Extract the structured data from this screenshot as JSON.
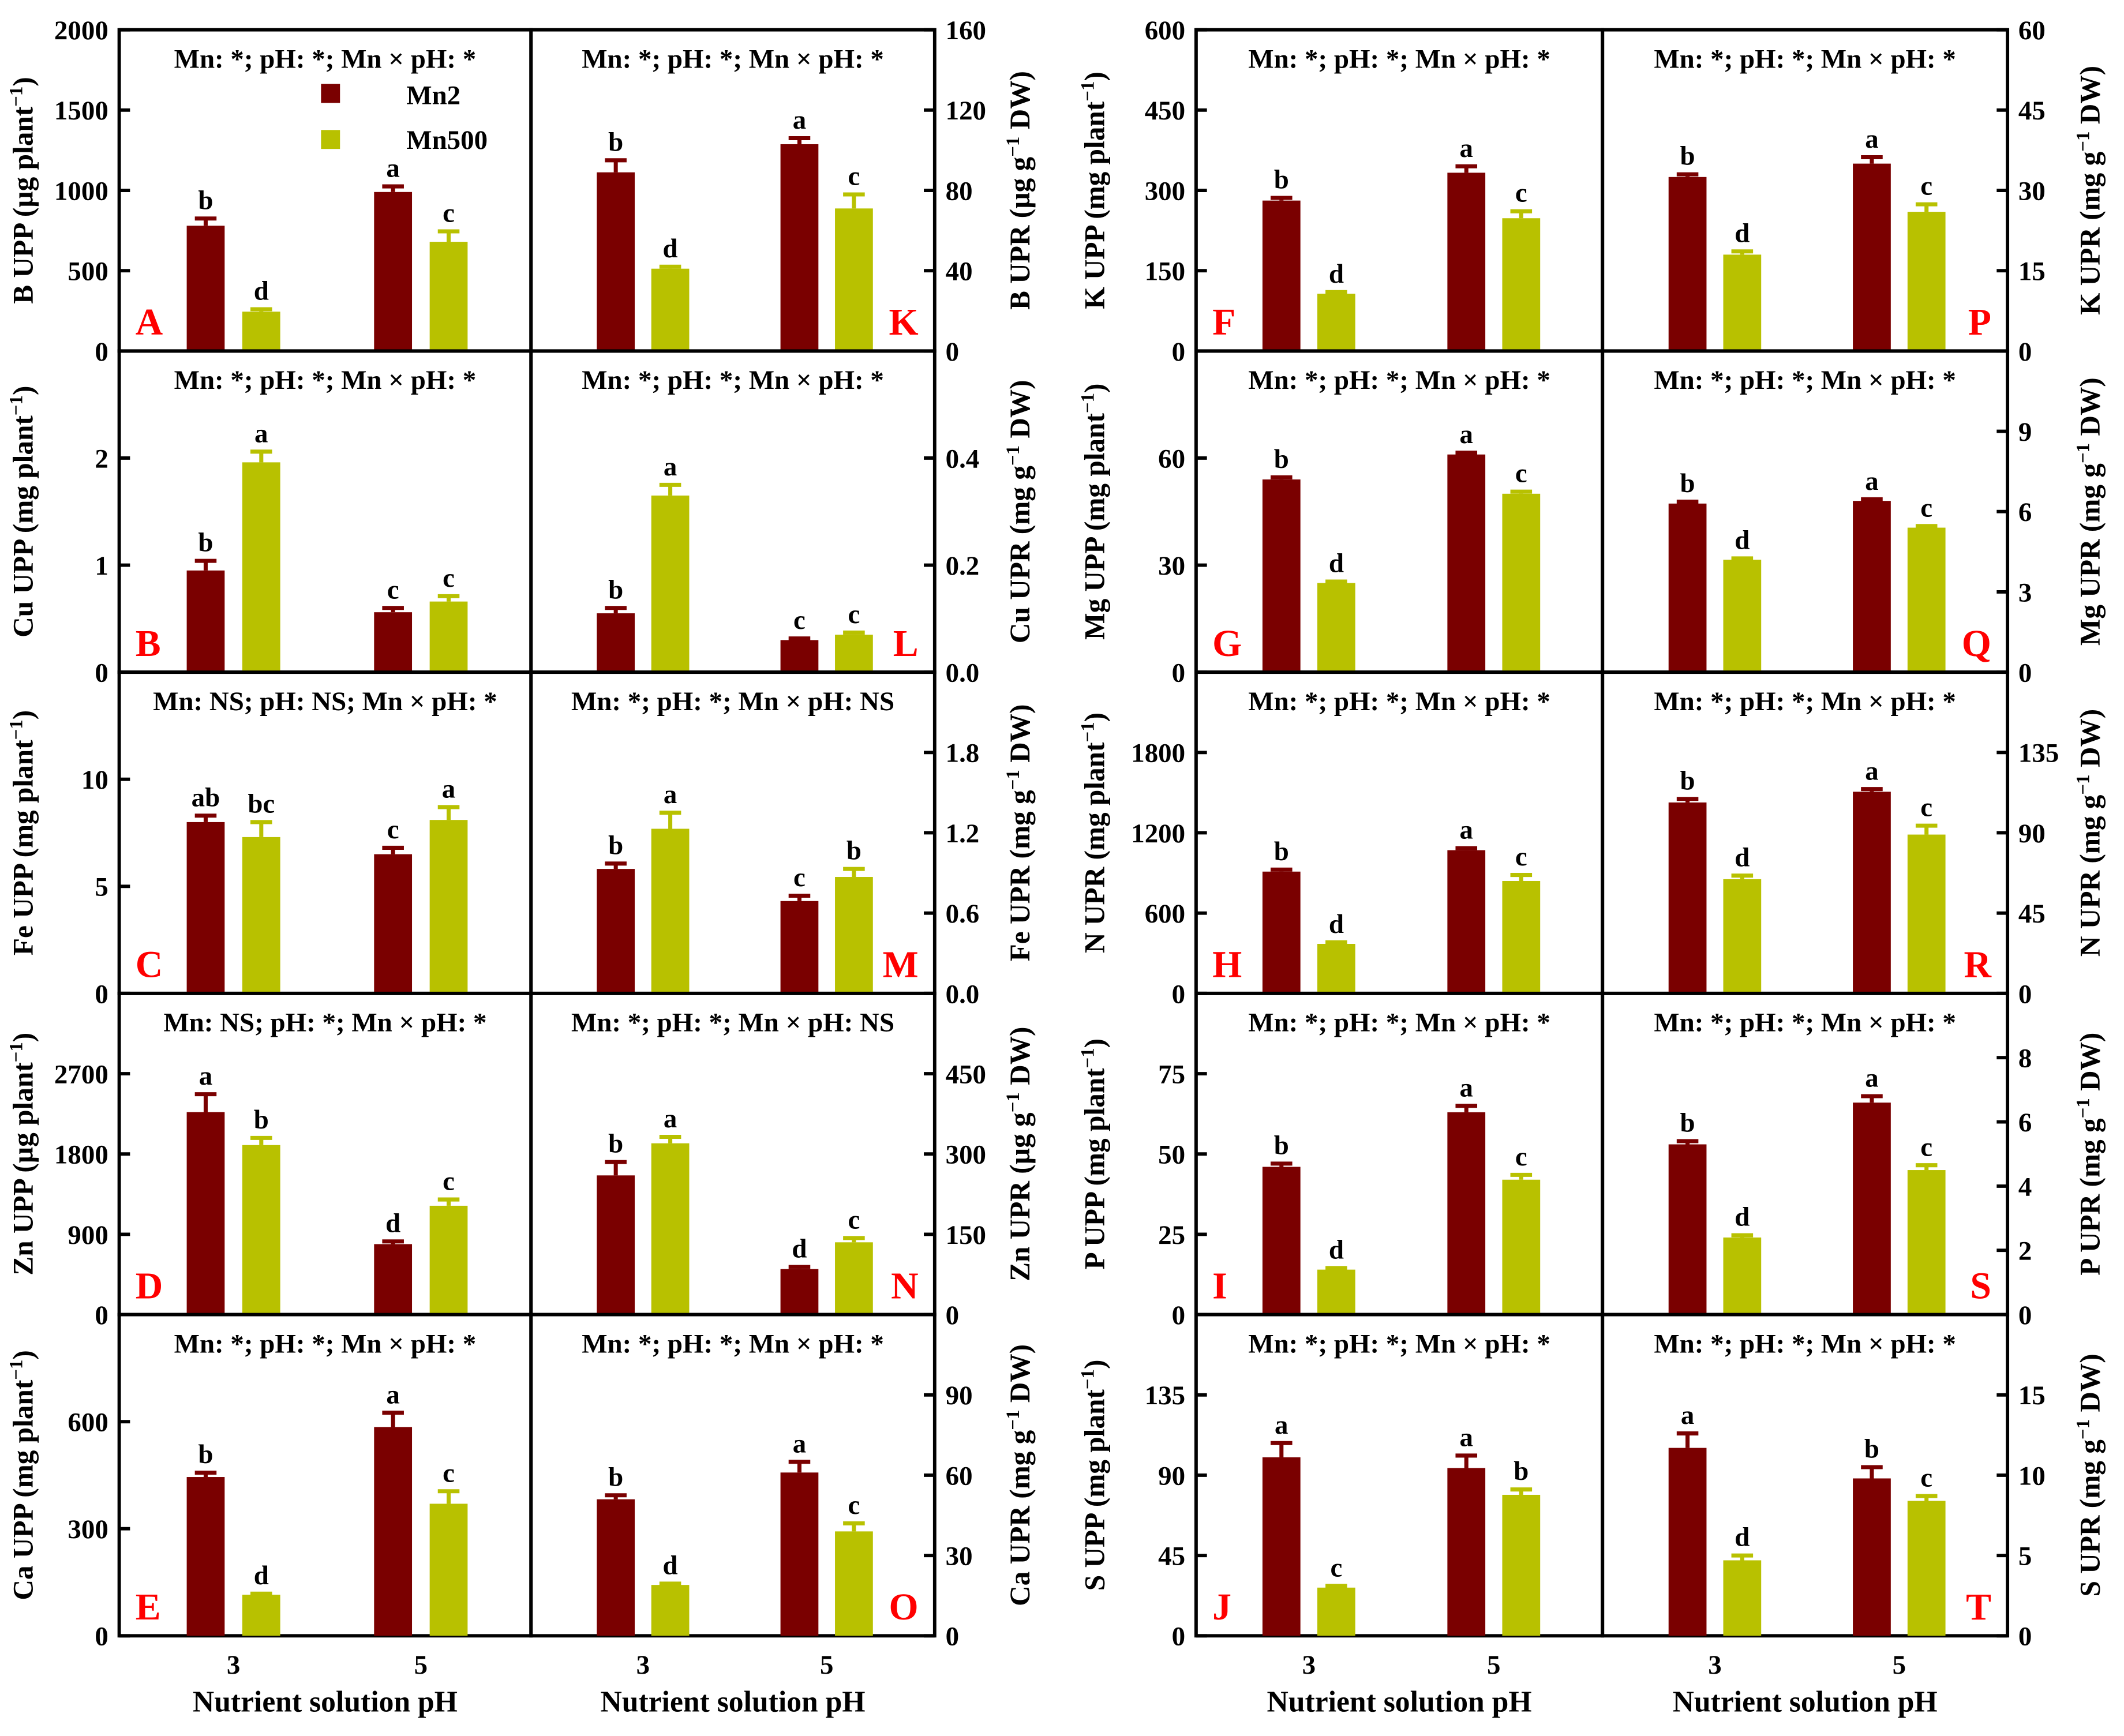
{
  "legend": {
    "series": [
      "Mn2",
      "Mn500"
    ],
    "colors": [
      "#7a0000",
      "#b8c100"
    ]
  },
  "x_axis": {
    "categories": [
      "3",
      "5"
    ],
    "label": "Nutrient solution pH"
  },
  "chart_data": [
    {
      "type": "bar",
      "panel": "A",
      "ylabel": [
        "B UPP (µg plant",
        "−1",
        ")"
      ],
      "ylim": [
        0,
        2000
      ],
      "ticks": [
        "0",
        "500",
        "1000",
        "1500",
        "2000"
      ],
      "annotation": "Mn: *; pH: *; Mn × pH: *",
      "values": [
        780,
        245,
        990,
        680
      ],
      "errors": [
        45,
        15,
        35,
        65
      ],
      "letters": [
        "b",
        "d",
        "a",
        "c"
      ]
    },
    {
      "type": "bar",
      "panel": "K",
      "ylabel": [
        "B UPR (µg g",
        "−1",
        " DW)"
      ],
      "ylim": [
        0,
        160
      ],
      "ticks": [
        "0",
        "40",
        "80",
        "120",
        "160"
      ],
      "annotation": "Mn: *; pH: *; Mn × pH: *",
      "values": [
        89,
        41,
        103,
        71
      ],
      "errors": [
        6,
        1,
        3,
        7
      ],
      "letters": [
        "b",
        "d",
        "a",
        "c"
      ]
    },
    {
      "type": "bar",
      "panel": "F",
      "ylabel": [
        "K UPP (mg plant",
        "−1",
        ")"
      ],
      "ylim": [
        0,
        600
      ],
      "ticks": [
        "0",
        "150",
        "300",
        "450",
        "600"
      ],
      "annotation": "Mn: *; pH: *; Mn × pH: *",
      "values": [
        281,
        107,
        333,
        248
      ],
      "errors": [
        5,
        3,
        12,
        13
      ],
      "letters": [
        "b",
        "d",
        "a",
        "c"
      ]
    },
    {
      "type": "bar",
      "panel": "P",
      "ylabel": [
        "K UPR (mg g",
        "−1",
        " DW)"
      ],
      "ylim": [
        0,
        60
      ],
      "ticks": [
        "0",
        "15",
        "30",
        "45",
        "60"
      ],
      "annotation": "Mn: *; pH: *; Mn × pH: *",
      "values": [
        32.5,
        18,
        35,
        26
      ],
      "errors": [
        0.5,
        0.6,
        1.2,
        1.4
      ],
      "letters": [
        "b",
        "d",
        "a",
        "c"
      ]
    },
    {
      "type": "bar",
      "panel": "B",
      "ylabel": [
        "Cu UPP (mg plant",
        "−1",
        ")"
      ],
      "ylim": [
        0,
        3
      ],
      "ticks": [
        "0",
        "1",
        "2"
      ],
      "annotation": "Mn: *; pH: *; Mn × pH: *",
      "values": [
        0.95,
        1.96,
        0.56,
        0.66
      ],
      "errors": [
        0.09,
        0.1,
        0.04,
        0.05
      ],
      "letters": [
        "b",
        "a",
        "c",
        "c"
      ]
    },
    {
      "type": "bar",
      "panel": "L",
      "ylabel": [
        "Cu UPR (mg g",
        "−1",
        " DW)"
      ],
      "ylim": [
        0,
        0.6
      ],
      "ticks": [
        "0.0",
        "0.2",
        "0.4"
      ],
      "annotation": "Mn: *; pH: *; Mn × pH: *",
      "values": [
        0.11,
        0.33,
        0.06,
        0.07
      ],
      "errors": [
        0.01,
        0.02,
        0.003,
        0.004
      ],
      "letters": [
        "b",
        "a",
        "c",
        "c"
      ]
    },
    {
      "type": "bar",
      "panel": "G",
      "ylabel": [
        "Mg UPP (mg plant",
        "−1",
        ")"
      ],
      "ylim": [
        0,
        90
      ],
      "ticks": [
        "0",
        "30",
        "60"
      ],
      "annotation": "Mn: *; pH: *; Mn × pH: *",
      "values": [
        54,
        25,
        61,
        50
      ],
      "errors": [
        0.6,
        0.4,
        0.5,
        0.6
      ],
      "letters": [
        "b",
        "d",
        "a",
        "c"
      ]
    },
    {
      "type": "bar",
      "panel": "Q",
      "ylabel": [
        "Mg UPR (mg g",
        "−1",
        " DW)"
      ],
      "ylim": [
        0,
        12
      ],
      "ticks": [
        "0",
        "3",
        "6",
        "9"
      ],
      "annotation": "Mn: *; pH: *; Mn × pH: *",
      "values": [
        6.3,
        4.2,
        6.4,
        5.4
      ],
      "errors": [
        0.07,
        0.05,
        0.06,
        0.06
      ],
      "letters": [
        "b",
        "d",
        "a",
        "c"
      ]
    },
    {
      "type": "bar",
      "panel": "C",
      "ylabel": [
        "Fe UPP (mg plant",
        "−1",
        ")"
      ],
      "ylim": [
        0,
        15
      ],
      "ticks": [
        "0",
        "5",
        "10"
      ],
      "annotation": "Mn: NS; pH: NS; Mn × pH: *",
      "values": [
        8.0,
        7.3,
        6.5,
        8.1
      ],
      "errors": [
        0.3,
        0.7,
        0.3,
        0.6
      ],
      "letters": [
        "ab",
        "bc",
        "c",
        "a"
      ]
    },
    {
      "type": "bar",
      "panel": "M",
      "ylabel": [
        "Fe UPR (mg g",
        "−1",
        " DW)"
      ],
      "ylim": [
        0,
        2.4
      ],
      "ticks": [
        "0.0",
        "0.6",
        "1.2",
        "1.8"
      ],
      "annotation": "Mn: *; pH: *; Mn × pH: NS",
      "values": [
        0.93,
        1.23,
        0.69,
        0.87
      ],
      "errors": [
        0.04,
        0.12,
        0.04,
        0.06
      ],
      "letters": [
        "b",
        "a",
        "c",
        "b"
      ]
    },
    {
      "type": "bar",
      "panel": "H",
      "ylabel": [
        "N UPR (mg plant",
        "−1",
        ")"
      ],
      "ylim": [
        0,
        2400
      ],
      "ticks": [
        "0",
        "600",
        "1200",
        "1800"
      ],
      "annotation": "Mn: *; pH: *; Mn × pH: *",
      "values": [
        910,
        370,
        1070,
        840
      ],
      "errors": [
        15,
        12,
        15,
        45
      ],
      "letters": [
        "b",
        "d",
        "a",
        "c"
      ]
    },
    {
      "type": "bar",
      "panel": "R",
      "ylabel": [
        "N UPR (mg g",
        "−1",
        " DW)"
      ],
      "ylim": [
        0,
        180
      ],
      "ticks": [
        "0",
        "45",
        "90",
        "135"
      ],
      "annotation": "Mn: *; pH: *; Mn × pH: *",
      "values": [
        107,
        64,
        113,
        89
      ],
      "errors": [
        2,
        2,
        1.5,
        5
      ],
      "letters": [
        "b",
        "d",
        "a",
        "c"
      ]
    },
    {
      "type": "bar",
      "panel": "D",
      "ylabel": [
        "Zn UPP (µg plant",
        "−1",
        ")"
      ],
      "ylim": [
        0,
        3600
      ],
      "ticks": [
        "0",
        "900",
        "1800",
        "2700"
      ],
      "annotation": "Mn: NS; pH: *; Mn × pH: *",
      "values": [
        2270,
        1900,
        790,
        1220
      ],
      "errors": [
        200,
        80,
        30,
        70
      ],
      "letters": [
        "a",
        "b",
        "d",
        "c"
      ]
    },
    {
      "type": "bar",
      "panel": "N",
      "ylabel": [
        "Zn UPR (µg g",
        "−1",
        " DW)"
      ],
      "ylim": [
        0,
        600
      ],
      "ticks": [
        "0",
        "150",
        "300",
        "450"
      ],
      "annotation": "Mn: *; pH: *; Mn × pH: NS",
      "values": [
        260,
        320,
        85,
        135
      ],
      "errors": [
        25,
        12,
        4,
        8
      ],
      "letters": [
        "b",
        "a",
        "d",
        "c"
      ]
    },
    {
      "type": "bar",
      "panel": "I",
      "ylabel": [
        "P UPP (mg plant",
        "−1",
        ")"
      ],
      "ylim": [
        0,
        100
      ],
      "ticks": [
        "0",
        "25",
        "50",
        "75"
      ],
      "annotation": "Mn: *; pH: *; Mn × pH: *",
      "values": [
        46,
        14,
        63,
        42
      ],
      "errors": [
        1,
        0.5,
        2,
        1.5
      ],
      "letters": [
        "b",
        "d",
        "a",
        "c"
      ]
    },
    {
      "type": "bar",
      "panel": "S",
      "ylabel": [
        "P UPR (mg g",
        "−1",
        " DW)"
      ],
      "ylim": [
        0,
        10
      ],
      "ticks": [
        "0",
        "2",
        "4",
        "6",
        "8"
      ],
      "annotation": "Mn: *; pH: *; Mn × pH: *",
      "values": [
        5.3,
        2.4,
        6.6,
        4.5
      ],
      "errors": [
        0.1,
        0.07,
        0.2,
        0.15
      ],
      "letters": [
        "b",
        "d",
        "a",
        "c"
      ]
    },
    {
      "type": "bar",
      "panel": "E",
      "ylabel": [
        "Ca UPP (mg plant",
        "−1",
        ")"
      ],
      "ylim": [
        0,
        900
      ],
      "ticks": [
        "0",
        "300",
        "600"
      ],
      "annotation": "Mn: *; pH: *; Mn × pH: *",
      "values": [
        445,
        115,
        585,
        370
      ],
      "errors": [
        12,
        3,
        40,
        35
      ],
      "letters": [
        "b",
        "d",
        "a",
        "c"
      ]
    },
    {
      "type": "bar",
      "panel": "O",
      "ylabel": [
        "Ca UPR (mg g",
        "−1",
        " DW)"
      ],
      "ylim": [
        0,
        120
      ],
      "ticks": [
        "0",
        "30",
        "60",
        "90"
      ],
      "annotation": "Mn: *; pH: *; Mn × pH: *",
      "values": [
        51,
        19,
        61,
        39
      ],
      "errors": [
        1.5,
        0.5,
        4,
        3
      ],
      "letters": [
        "b",
        "d",
        "a",
        "c"
      ]
    },
    {
      "type": "bar",
      "panel": "J",
      "ylabel": [
        "S UPP (mg plant",
        "−1",
        ")"
      ],
      "ylim": [
        0,
        180
      ],
      "ticks": [
        "0",
        "45",
        "90",
        "135"
      ],
      "annotation": "Mn: *; pH: *; Mn × pH: *",
      "values": [
        100,
        27,
        94,
        79
      ],
      "errors": [
        8,
        1,
        7,
        3
      ],
      "letters": [
        "a",
        "c",
        "a",
        "b"
      ]
    },
    {
      "type": "bar",
      "panel": "T",
      "ylabel": [
        "S UPR (mg g",
        "−1",
        " DW)"
      ],
      "ylim": [
        0,
        20
      ],
      "ticks": [
        "0",
        "5",
        "10",
        "15"
      ],
      "annotation": "Mn: *; pH: *; Mn × pH: *",
      "values": [
        11.7,
        4.7,
        9.8,
        8.4
      ],
      "errors": [
        0.9,
        0.3,
        0.7,
        0.3
      ],
      "letters": [
        "a",
        "d",
        "b",
        "c"
      ]
    }
  ]
}
